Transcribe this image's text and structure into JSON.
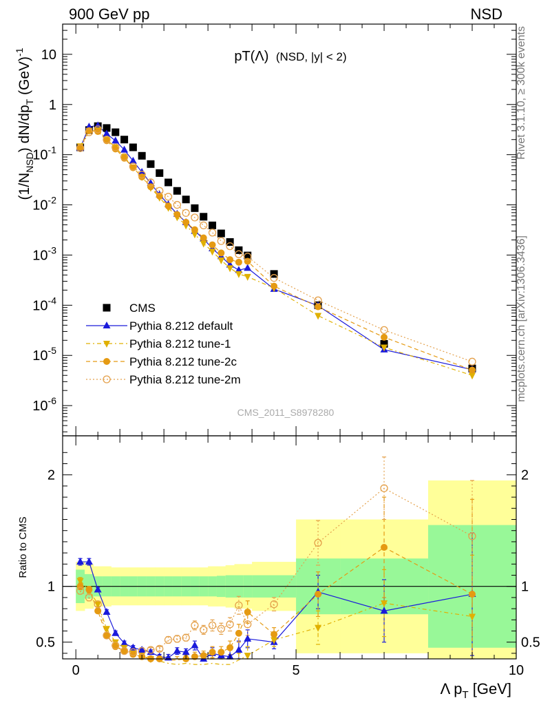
{
  "header": {
    "left": "900 GeV pp",
    "right": "NSD"
  },
  "side": {
    "rivet": "Rivet 3.1.10, ≥ 300k events",
    "mcplots": "mcplots.cern.ch [arXiv:1306.3436]"
  },
  "watermark": "CMS_2011_S8978280",
  "colors": {
    "cms": "#000000",
    "default": "#1a1adb",
    "tune1": "#e0b000",
    "tune2c": "#e59a12",
    "tune2m": "#e4a04a",
    "band_inner": "#98f898",
    "band_outer": "#ffff99"
  },
  "chart_data": [
    {
      "type": "scatter",
      "title": "pT(Λ) (NSD, |y| < 2)",
      "title_main": "pT(Λ)",
      "title_sub": "(NSD, |y| < 2)",
      "xlabel": "Λ p_T [GeV]",
      "ylabel": "(1/N_NSD) dN/dp_T (GeV)^-1",
      "yscale": "log",
      "xlim": [
        -0.3,
        10
      ],
      "ylim": [
        2.5e-07,
        40
      ],
      "ytick_labels": [
        "10^-6",
        "10^-5",
        "10^-4",
        "10^-3",
        "10^-2",
        "10^-1",
        "1",
        "10"
      ],
      "legend": [
        "CMS",
        "Pythia 8.212 default",
        "Pythia 8.212 tune-1",
        "Pythia 8.212 tune-2c",
        "Pythia 8.212 tune-2m"
      ],
      "series": [
        {
          "name": "CMS",
          "style": "square",
          "x": [
            0.1,
            0.3,
            0.5,
            0.7,
            0.9,
            1.1,
            1.3,
            1.5,
            1.7,
            1.9,
            2.1,
            2.3,
            2.5,
            2.7,
            2.9,
            3.1,
            3.3,
            3.5,
            3.7,
            3.9,
            4.5,
            5.5,
            7.0,
            9.0
          ],
          "y": [
            0.14,
            0.31,
            0.37,
            0.34,
            0.28,
            0.2,
            0.14,
            0.095,
            0.065,
            0.043,
            0.028,
            0.019,
            0.0128,
            0.0086,
            0.0058,
            0.0039,
            0.0027,
            0.00182,
            0.00125,
            0.00098,
            0.00042,
            0.0001,
            1.7e-05,
            5.5e-06
          ]
        },
        {
          "name": "Pythia 8.212 default",
          "style": "triangle-up",
          "x": [
            0.1,
            0.3,
            0.5,
            0.7,
            0.9,
            1.1,
            1.3,
            1.5,
            1.7,
            1.9,
            2.1,
            2.3,
            2.5,
            2.7,
            2.9,
            3.1,
            3.3,
            3.5,
            3.7,
            3.9,
            4.5,
            5.5,
            7.0,
            9.0
          ],
          "y": [
            0.135,
            0.36,
            0.38,
            0.26,
            0.19,
            0.125,
            0.075,
            0.045,
            0.027,
            0.016,
            0.0102,
            0.0066,
            0.0045,
            0.003,
            0.0021,
            0.00135,
            0.00094,
            0.00064,
            0.0005,
            0.00055,
            0.00021,
            9.8e-05,
            1.3e-05,
            5.2e-06
          ]
        },
        {
          "name": "Pythia 8.212 tune-1",
          "style": "triangle-down",
          "x": [
            0.1,
            0.3,
            0.5,
            0.7,
            0.9,
            1.1,
            1.3,
            1.5,
            1.7,
            1.9,
            2.1,
            2.3,
            2.5,
            2.7,
            2.9,
            3.1,
            3.3,
            3.5,
            3.7,
            3.9,
            4.5,
            5.5,
            7.0,
            9.0
          ],
          "y": [
            0.148,
            0.3,
            0.31,
            0.2,
            0.14,
            0.09,
            0.056,
            0.036,
            0.022,
            0.014,
            0.0088,
            0.0057,
            0.0039,
            0.0026,
            0.0017,
            0.00118,
            0.00079,
            0.00055,
            0.00042,
            0.00037,
            0.00022,
            6.2e-05,
            1.45e-05,
            4e-06
          ]
        },
        {
          "name": "Pythia 8.212 tune-2c",
          "style": "circle-filled",
          "x": [
            0.1,
            0.3,
            0.5,
            0.7,
            0.9,
            1.1,
            1.3,
            1.5,
            1.7,
            1.9,
            2.1,
            2.3,
            2.5,
            2.7,
            2.9,
            3.1,
            3.3,
            3.5,
            3.7,
            3.9,
            4.5,
            5.5,
            7.0,
            9.0
          ],
          "y": [
            0.14,
            0.3,
            0.29,
            0.19,
            0.13,
            0.085,
            0.055,
            0.036,
            0.023,
            0.015,
            0.0095,
            0.0064,
            0.0045,
            0.0032,
            0.0022,
            0.0016,
            0.0011,
            0.00081,
            0.00072,
            0.00075,
            0.00024,
            9.3e-05,
            2.3e-05,
            5.1e-06
          ]
        },
        {
          "name": "Pythia 8.212 tune-2m",
          "style": "circle-open",
          "x": [
            0.1,
            0.3,
            0.5,
            0.7,
            0.9,
            1.1,
            1.3,
            1.5,
            1.7,
            1.9,
            2.1,
            2.3,
            2.5,
            2.7,
            2.9,
            3.1,
            3.3,
            3.5,
            3.7,
            3.9,
            4.5,
            5.5,
            7.0,
            9.0
          ],
          "y": [
            0.135,
            0.28,
            0.32,
            0.2,
            0.14,
            0.09,
            0.058,
            0.04,
            0.028,
            0.019,
            0.0145,
            0.01,
            0.0069,
            0.0056,
            0.0039,
            0.0028,
            0.0019,
            0.0015,
            0.00104,
            0.00093,
            0.00035,
            0.000125,
            3.2e-05,
            7.5e-06
          ]
        }
      ]
    },
    {
      "type": "scatter",
      "ylabel": "Ratio to CMS",
      "xlabel": "Λ p_T [GeV]",
      "xlim": [
        -0.3,
        10
      ],
      "ylim": [
        0.35,
        2.35
      ],
      "yticks": [
        0.5,
        1,
        2
      ],
      "ytick_labels": [
        "0.5",
        "1",
        "2"
      ],
      "xticks": [
        0,
        5,
        10
      ],
      "xtick_labels": [
        "0",
        "5",
        "10"
      ],
      "bands": {
        "edges": [
          0,
          0.2,
          0.4,
          0.6,
          0.8,
          1.0,
          1.2,
          1.4,
          1.6,
          1.8,
          2.0,
          2.2,
          2.4,
          2.6,
          2.8,
          3.0,
          3.2,
          3.4,
          3.6,
          3.8,
          4.0,
          5.0,
          6.0,
          8.0,
          10.0
        ],
        "inner_half": [
          0.15,
          0.11,
          0.09,
          0.09,
          0.09,
          0.09,
          0.09,
          0.09,
          0.09,
          0.09,
          0.09,
          0.09,
          0.09,
          0.09,
          0.09,
          0.09,
          0.095,
          0.1,
          0.1,
          0.1,
          0.1,
          0.25,
          0.25,
          0.55
        ],
        "outer_half": [
          0.22,
          0.2,
          0.18,
          0.18,
          0.17,
          0.17,
          0.17,
          0.17,
          0.17,
          0.17,
          0.17,
          0.17,
          0.17,
          0.17,
          0.17,
          0.18,
          0.18,
          0.19,
          0.2,
          0.2,
          0.22,
          0.6,
          0.6,
          0.95
        ]
      },
      "reference_line": 1,
      "series": [
        {
          "name": "Pythia 8.212 default",
          "x": [
            0.1,
            0.3,
            0.5,
            0.7,
            0.9,
            1.1,
            1.3,
            1.5,
            1.7,
            1.9,
            2.1,
            2.3,
            2.5,
            2.7,
            2.9,
            3.1,
            3.3,
            3.5,
            3.7,
            3.9,
            4.5,
            5.5,
            7.0,
            9.0
          ],
          "y": [
            1.22,
            1.22,
            0.97,
            0.77,
            0.58,
            0.49,
            0.45,
            0.43,
            0.41,
            0.37,
            0.36,
            0.42,
            0.41,
            0.47,
            0.35,
            0.4,
            0.38,
            0.37,
            0.43,
            0.53,
            0.5,
            0.95,
            0.78,
            0.93
          ],
          "err": [
            0.03,
            0.03,
            0.02,
            0.02,
            0.02,
            0.02,
            0.02,
            0.02,
            0.02,
            0.02,
            0.03,
            0.03,
            0.03,
            0.04,
            0.04,
            0.05,
            0.05,
            0.06,
            0.08,
            0.08,
            0.06,
            0.15,
            0.28,
            0.55
          ]
        },
        {
          "name": "Pythia 8.212 tune-1",
          "x": [
            0.1,
            0.3,
            0.5,
            0.7,
            0.9,
            1.1,
            1.3,
            1.5,
            1.7,
            1.9,
            2.1,
            2.3,
            2.5,
            2.7,
            2.9,
            3.1,
            3.3,
            3.5,
            3.7,
            3.9,
            4.5,
            5.5,
            7.0,
            9.0
          ],
          "y": [
            1.05,
            0.97,
            0.84,
            0.62,
            0.5,
            0.45,
            0.4,
            0.38,
            0.35,
            0.33,
            0.31,
            0.3,
            0.31,
            0.3,
            0.3,
            0.31,
            0.29,
            0.3,
            0.34,
            0.38,
            0.52,
            0.63,
            0.85,
            0.73
          ],
          "err": [
            0.03,
            0.03,
            0.02,
            0.02,
            0.02,
            0.02,
            0.02,
            0.02,
            0.02,
            0.02,
            0.03,
            0.03,
            0.03,
            0.04,
            0.04,
            0.05,
            0.05,
            0.06,
            0.06,
            0.08,
            0.06,
            0.15,
            0.3,
            0.55
          ]
        },
        {
          "name": "Pythia 8.212 tune-2c",
          "x": [
            0.1,
            0.3,
            0.5,
            0.7,
            0.9,
            1.1,
            1.3,
            1.5,
            1.7,
            1.9,
            2.1,
            2.3,
            2.5,
            2.7,
            2.9,
            3.1,
            3.3,
            3.5,
            3.7,
            3.9,
            4.5,
            5.5,
            7.0,
            9.0
          ],
          "y": [
            1.0,
            0.97,
            0.78,
            0.56,
            0.46,
            0.42,
            0.39,
            0.37,
            0.35,
            0.35,
            0.34,
            0.34,
            0.35,
            0.37,
            0.38,
            0.41,
            0.41,
            0.45,
            0.58,
            0.77,
            0.57,
            0.93,
            1.35,
            0.93
          ],
          "err": [
            0.03,
            0.03,
            0.02,
            0.02,
            0.02,
            0.02,
            0.02,
            0.02,
            0.02,
            0.02,
            0.03,
            0.03,
            0.03,
            0.04,
            0.04,
            0.05,
            0.05,
            0.06,
            0.08,
            0.1,
            0.06,
            0.2,
            0.45,
            0.85
          ]
        },
        {
          "name": "Pythia 8.212 tune-2m",
          "x": [
            0.1,
            0.3,
            0.5,
            0.7,
            0.9,
            1.1,
            1.3,
            1.5,
            1.7,
            1.9,
            2.1,
            2.3,
            2.5,
            2.7,
            2.9,
            3.1,
            3.3,
            3.5,
            3.7,
            3.9,
            4.5,
            5.5,
            7.0,
            9.0
          ],
          "y": [
            0.96,
            0.9,
            0.84,
            0.56,
            0.47,
            0.42,
            0.41,
            0.42,
            0.43,
            0.44,
            0.52,
            0.53,
            0.54,
            0.65,
            0.61,
            0.65,
            0.62,
            0.66,
            0.83,
            0.66,
            0.84,
            1.39,
            1.88,
            1.45
          ],
          "err": [
            0.03,
            0.03,
            0.02,
            0.02,
            0.02,
            0.02,
            0.02,
            0.02,
            0.02,
            0.02,
            0.03,
            0.03,
            0.03,
            0.04,
            0.04,
            0.05,
            0.05,
            0.06,
            0.08,
            0.1,
            0.06,
            0.2,
            0.28,
            0.5
          ]
        }
      ]
    }
  ]
}
